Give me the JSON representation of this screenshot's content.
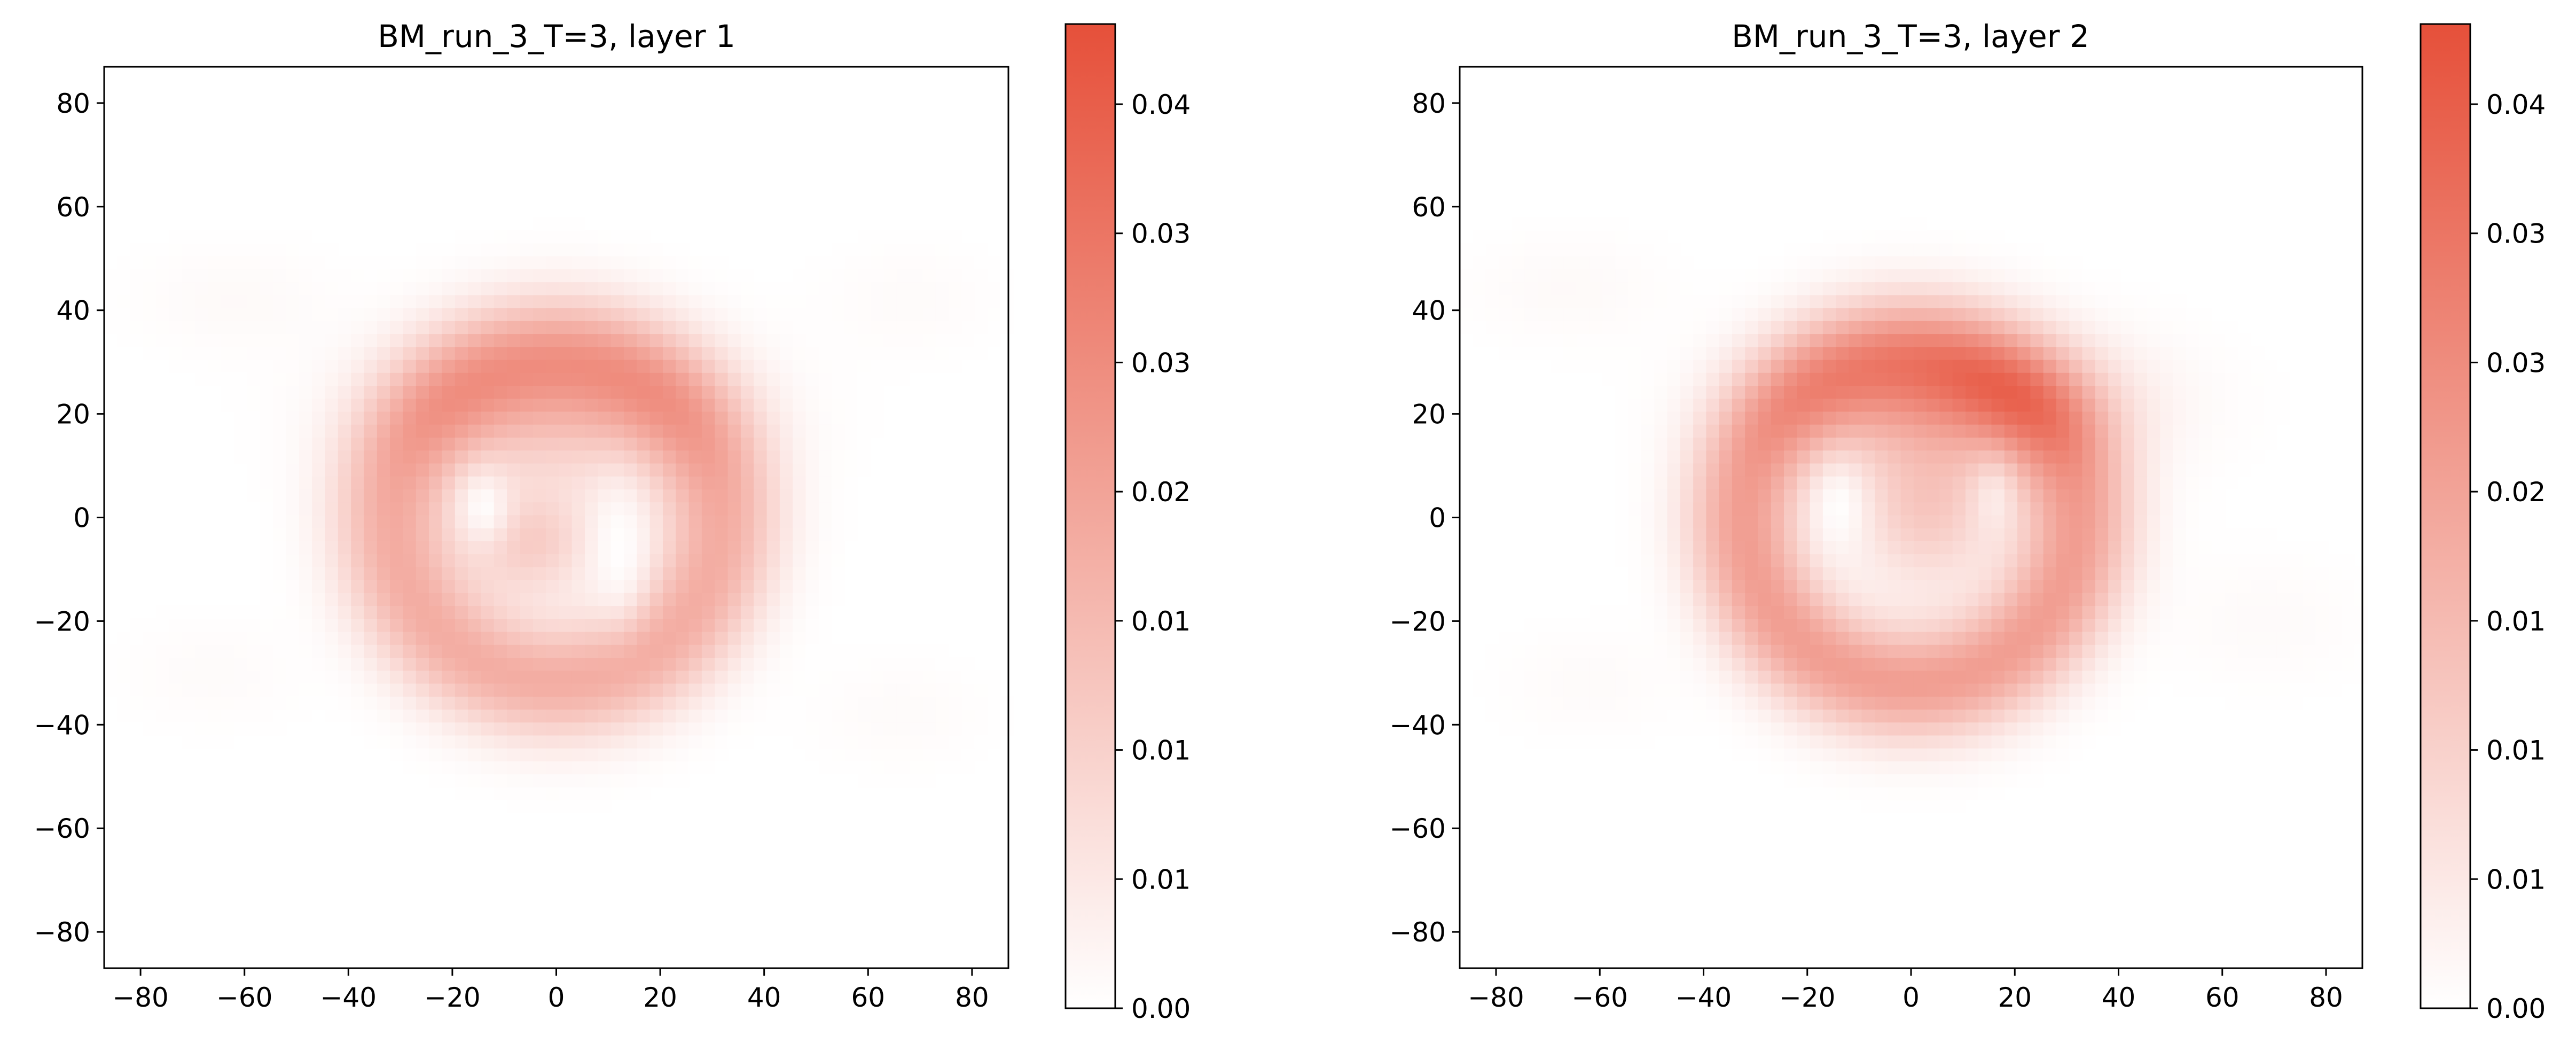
{
  "chart_data": [
    {
      "type": "heatmap",
      "title": "BM_run_3_T=3, layer 1",
      "xlabel": "",
      "ylabel": "",
      "xlim": [
        -87,
        87
      ],
      "ylim": [
        -87,
        87
      ],
      "x_ticks": [
        "−80",
        "−60",
        "−40",
        "−20",
        "0",
        "20",
        "40",
        "60",
        "80"
      ],
      "y_ticks": [
        "80",
        "60",
        "40",
        "20",
        "0",
        "−20",
        "−40",
        "−60",
        "−80"
      ],
      "colorbar": {
        "range": [
          0.0,
          0.047
        ],
        "ticks": [
          "0.00",
          "0.01",
          "0.01",
          "0.01",
          "0.02",
          "0.03",
          "0.03",
          "0.04"
        ],
        "color_low": "#ffffff",
        "color_high": "#e6503a"
      },
      "grid": false,
      "features": [
        {
          "shape": "ring",
          "cx": 0,
          "cy": 0,
          "r_outer": 46,
          "r_inner": 17,
          "peak": 0.022
        },
        {
          "shape": "blob",
          "cx": 0,
          "cy": 20,
          "rx": 30,
          "ry": 15,
          "peak": 0.014
        },
        {
          "shape": "blob",
          "cx": -5,
          "cy": -5,
          "rx": 12,
          "ry": 10,
          "peak": 0.013
        },
        {
          "shape": "blob",
          "cx": -62,
          "cy": 42,
          "rx": 18,
          "ry": 10,
          "peak": 0.0015
        },
        {
          "shape": "blob",
          "cx": 68,
          "cy": 42,
          "rx": 16,
          "ry": 10,
          "peak": 0.0012
        },
        {
          "shape": "blob",
          "cx": -66,
          "cy": -30,
          "rx": 16,
          "ry": 10,
          "peak": 0.0012
        },
        {
          "shape": "blob",
          "cx": 66,
          "cy": -38,
          "rx": 16,
          "ry": 10,
          "peak": 0.0012
        }
      ],
      "voids": [
        {
          "cx": -14,
          "cy": 2,
          "rx": 5,
          "ry": 7,
          "depth": 0.9
        },
        {
          "cx": 12,
          "cy": -6,
          "rx": 5,
          "ry": 12,
          "depth": 0.9
        }
      ]
    },
    {
      "type": "heatmap",
      "title": "BM_run_3_T=3, layer 2",
      "xlabel": "",
      "ylabel": "",
      "xlim": [
        -87,
        87
      ],
      "ylim": [
        -87,
        87
      ],
      "x_ticks": [
        "−80",
        "−60",
        "−40",
        "−20",
        "0",
        "20",
        "40",
        "60",
        "80"
      ],
      "y_ticks": [
        "80",
        "60",
        "40",
        "20",
        "0",
        "−20",
        "−40",
        "−60",
        "−80"
      ],
      "colorbar": {
        "range": [
          0.0,
          0.047
        ],
        "ticks": [
          "0.00",
          "0.01",
          "0.01",
          "0.01",
          "0.02",
          "0.03",
          "0.03",
          "0.04"
        ],
        "color_low": "#ffffff",
        "color_high": "#e6503a"
      },
      "grid": false,
      "features": [
        {
          "shape": "ring",
          "cx": 0,
          "cy": 0,
          "r_outer": 46,
          "r_inner": 18,
          "peak": 0.026
        },
        {
          "shape": "blob",
          "cx": 8,
          "cy": 22,
          "rx": 30,
          "ry": 13,
          "peak": 0.02
        },
        {
          "shape": "blob",
          "cx": 3,
          "cy": 1,
          "rx": 13,
          "ry": 14,
          "peak": 0.014
        },
        {
          "shape": "blob",
          "cx": -66,
          "cy": 44,
          "rx": 18,
          "ry": 10,
          "peak": 0.0015
        },
        {
          "shape": "blob",
          "cx": 68,
          "cy": -20,
          "rx": 18,
          "ry": 12,
          "peak": 0.0013
        },
        {
          "shape": "blob",
          "cx": -62,
          "cy": -32,
          "rx": 16,
          "ry": 10,
          "peak": 0.0012
        }
      ],
      "voids": [
        {
          "cx": -14,
          "cy": 2,
          "rx": 5,
          "ry": 8,
          "depth": 0.9
        },
        {
          "cx": 16,
          "cy": 4,
          "rx": 4,
          "ry": 7,
          "depth": 0.5
        }
      ]
    }
  ]
}
